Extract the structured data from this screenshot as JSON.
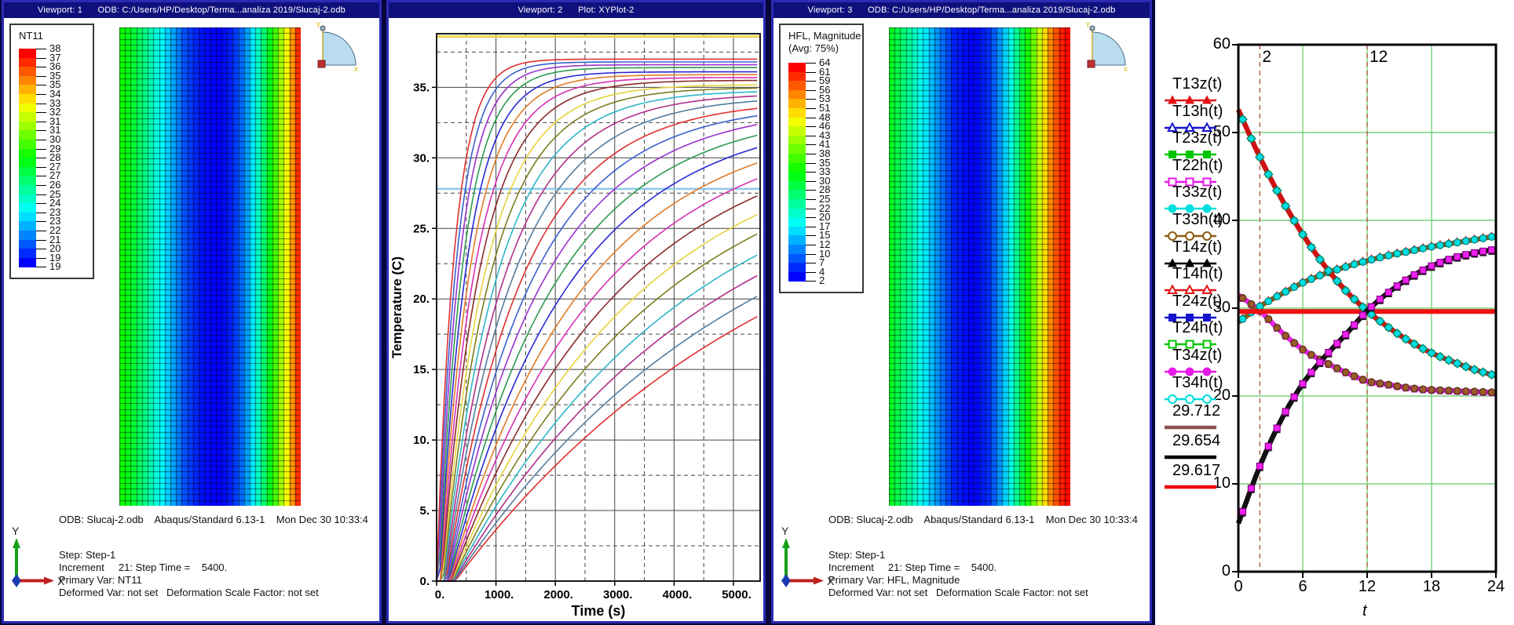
{
  "app": {
    "background": "#07073a",
    "viewport_border": "#2b2bb4",
    "titlebar_bg": "#10107c",
    "titlebar_fg": "#ffffff"
  },
  "viewport1": {
    "title": "Viewport: 1      ODB: C:/Users/HP/Desktop/Terma...analiza 2019/Slucaj-2.odb",
    "odb_line": "ODB: Slucaj-2.odb    Abaqus/Standard 6.13-1    Mon Dec 30 10:33:4",
    "state_lines": [
      "Step: Step-1",
      "Increment     21: Step Time =    5400.",
      "Primary Var: NT11",
      "Deformed Var: not set   Deformation Scale Factor: not set"
    ],
    "triad": {
      "x_label": "X",
      "y_label": "Y"
    }
  },
  "viewport2": {
    "title": "Viewport: 2      Plot: XYPlot-2"
  },
  "viewport3": {
    "title": "Viewport: 3      ODB: C:/Users/HP/Desktop/Terma...analiza 2019/Slucaj-2.odb",
    "odb_line": "ODB: Slucaj-2.odb    Abaqus/Standard 6.13-1    Mon Dec 30 10:33:4",
    "state_lines": [
      "Step: Step-1",
      "Increment     21: Step Time =    5400.",
      "Primary Var: HFL, Magnitude",
      "Deformed Var: not set   Deformation Scale Factor: not set"
    ],
    "triad": {
      "x_label": "X",
      "y_label": "Y"
    }
  },
  "chart_data": [
    {
      "id": "viewport1-contour",
      "type": "heatmap",
      "variable": "NT11",
      "colormap": "rainbow blue(min) to red(max)",
      "value_range": [
        19,
        38
      ],
      "legend": {
        "title_lines": [
          "NT11"
        ],
        "bands": 24,
        "tick_values": [
          38,
          37,
          36,
          35,
          35,
          34,
          33,
          32,
          31,
          31,
          30,
          29,
          28,
          27,
          27,
          26,
          25,
          24,
          23,
          23,
          22,
          21,
          20,
          19,
          19
        ]
      },
      "mesh": {
        "cols": 32,
        "rows": 84
      },
      "profile_x_value": [
        [
          0,
          29.0
        ],
        [
          0.08,
          27.5
        ],
        [
          0.18,
          25.0
        ],
        [
          0.28,
          22.5
        ],
        [
          0.36,
          20.5
        ],
        [
          0.46,
          19.2
        ],
        [
          0.56,
          19.0
        ],
        [
          0.63,
          19.8
        ],
        [
          0.69,
          21.5
        ],
        [
          0.75,
          24.0
        ],
        [
          0.81,
          27.0
        ],
        [
          0.86,
          29.8
        ],
        [
          0.9,
          32.0
        ],
        [
          0.94,
          34.2
        ],
        [
          0.97,
          36.3
        ],
        [
          1,
          38.0
        ]
      ]
    },
    {
      "id": "viewport2-xyplot",
      "type": "line",
      "xlabel": "Time (s)",
      "ylabel": "Temperature (C)",
      "xlim": [
        0,
        5450
      ],
      "ylim": [
        0,
        38.8
      ],
      "x_ticks": [
        0,
        1000,
        2000,
        3000,
        4000,
        5000
      ],
      "x_tick_labels": [
        "0.",
        "1000.",
        "2000.",
        "3000.",
        "4000.",
        "5000."
      ],
      "y_ticks": [
        0,
        5,
        10,
        15,
        20,
        25,
        30,
        35
      ],
      "y_tick_labels": [
        "0.",
        "5.",
        "10.",
        "15.",
        "20.",
        "25.",
        "30.",
        "35."
      ],
      "grid": {
        "major_x": 1000,
        "minor_x": 500,
        "major_y": 5,
        "minor_y": 2.5,
        "minor_style": "dashed"
      },
      "const_lines": [
        {
          "value": 38.6,
          "color": "#e9d44f",
          "width": 3
        },
        {
          "value": 27.8,
          "color": "#8fc8e8",
          "width": 2.5
        }
      ],
      "curve_model": "T(t) = amp*(1-exp(-(t-delay)/tau)) for t>=delay, else 0",
      "palette": [
        "#e03030",
        "#3a5fcd",
        "#9a32cd",
        "#2e9b4e",
        "#2929d6",
        "#e07b28",
        "#d631b4",
        "#8b2a2a",
        "#e6d33f",
        "#7d7d1f",
        "#2eb6c9",
        "#b0308a",
        "#557d9e"
      ],
      "curves": [
        {
          "amp": 37.0,
          "tau": 300,
          "delay": 0
        },
        {
          "amp": 36.8,
          "tau": 335,
          "delay": 12
        },
        {
          "amp": 36.6,
          "tau": 375,
          "delay": 24
        },
        {
          "amp": 36.4,
          "tau": 420,
          "delay": 36
        },
        {
          "amp": 36.1,
          "tau": 470,
          "delay": 48
        },
        {
          "amp": 35.9,
          "tau": 525,
          "delay": 60
        },
        {
          "amp": 35.7,
          "tau": 590,
          "delay": 72
        },
        {
          "amp": 35.5,
          "tau": 660,
          "delay": 84
        },
        {
          "amp": 35.2,
          "tau": 740,
          "delay": 96
        },
        {
          "amp": 35.0,
          "tau": 825,
          "delay": 108
        },
        {
          "amp": 34.8,
          "tau": 925,
          "delay": 120
        },
        {
          "amp": 34.6,
          "tau": 1035,
          "delay": 132
        },
        {
          "amp": 34.4,
          "tau": 1160,
          "delay": 144
        },
        {
          "amp": 34.1,
          "tau": 1295,
          "delay": 156
        },
        {
          "amp": 33.9,
          "tau": 1450,
          "delay": 168
        },
        {
          "amp": 33.7,
          "tau": 1620,
          "delay": 180
        },
        {
          "amp": 33.5,
          "tau": 1815,
          "delay": 192
        },
        {
          "amp": 33.3,
          "tau": 2030,
          "delay": 204
        },
        {
          "amp": 33.0,
          "tau": 2270,
          "delay": 216
        },
        {
          "amp": 32.8,
          "tau": 2540,
          "delay": 228
        },
        {
          "amp": 32.6,
          "tau": 2840,
          "delay": 240
        },
        {
          "amp": 32.4,
          "tau": 3180,
          "delay": 252
        },
        {
          "amp": 32.2,
          "tau": 3555,
          "delay": 264
        },
        {
          "amp": 31.9,
          "tau": 3975,
          "delay": 276
        },
        {
          "amp": 31.7,
          "tau": 4450,
          "delay": 288
        },
        {
          "amp": 31.5,
          "tau": 4980,
          "delay": 300
        },
        {
          "amp": 31.3,
          "tau": 5570,
          "delay": 312
        }
      ]
    },
    {
      "id": "viewport3-contour",
      "type": "heatmap",
      "variable": "HFL, Magnitude",
      "colormap": "rainbow blue(min) to red(max)",
      "value_range": [
        2,
        64
      ],
      "legend": {
        "title_lines": [
          "HFL, Magnitude",
          "(Avg: 75%)"
        ],
        "bands": 24,
        "tick_values": [
          64,
          61,
          59,
          56,
          53,
          51,
          48,
          46,
          43,
          41,
          38,
          35,
          33,
          30,
          28,
          25,
          22,
          20,
          17,
          15,
          12,
          10,
          7,
          4,
          2
        ]
      },
      "mesh": {
        "cols": 32,
        "rows": 84
      },
      "profile_x_value": [
        [
          0,
          32
        ],
        [
          0.08,
          26
        ],
        [
          0.18,
          18
        ],
        [
          0.28,
          10
        ],
        [
          0.36,
          4
        ],
        [
          0.47,
          2
        ],
        [
          0.55,
          5
        ],
        [
          0.62,
          12
        ],
        [
          0.68,
          20
        ],
        [
          0.74,
          30
        ],
        [
          0.8,
          40
        ],
        [
          0.85,
          49
        ],
        [
          0.9,
          57
        ],
        [
          0.95,
          62
        ],
        [
          1,
          64
        ]
      ]
    },
    {
      "id": "panel4-xyplot",
      "type": "line",
      "xlabel": "t",
      "xlim": [
        0,
        24
      ],
      "ylim": [
        0,
        60
      ],
      "x_ticks": [
        0,
        6,
        12,
        18,
        24
      ],
      "y_ticks": [
        0,
        10,
        20,
        30,
        40,
        50,
        60
      ],
      "grid_color": "#5ecb5e",
      "grid_v": [
        6,
        12,
        18
      ],
      "grid_h": [
        10,
        20,
        30,
        40,
        50
      ],
      "dashed_vlines": {
        "color": "#b05a4a",
        "at": [
          2,
          12
        ]
      },
      "top_labels": [
        {
          "x": 2,
          "text": "2"
        },
        {
          "x": 12,
          "text": "12"
        }
      ],
      "marker_dt": 0.8,
      "bundles": [
        {
          "t": [
            0,
            2,
            4,
            6,
            8,
            10,
            12,
            14,
            16,
            18,
            20,
            22,
            24
          ],
          "y": [
            52.6,
            47.2,
            42.5,
            38.4,
            34.9,
            32.0,
            29.7,
            27.8,
            26.2,
            24.9,
            23.9,
            23.0,
            22.3
          ],
          "line_color": "#cc1111",
          "marker": "diamond",
          "marker_fill": "#00dede",
          "marker_edge": "#007878",
          "under_marker": "square",
          "under_fill": "#00c400",
          "under_dy": 0
        },
        {
          "t": [
            0,
            2,
            4,
            6,
            8,
            10,
            12,
            14,
            16,
            18,
            20,
            22,
            24
          ],
          "y": [
            28.4,
            30.2,
            31.6,
            32.9,
            33.9,
            34.7,
            35.4,
            36.0,
            36.5,
            37.0,
            37.4,
            37.8,
            38.2
          ],
          "line_color": "#8b5a14",
          "marker": "circle",
          "marker_fill": "#00dede",
          "marker_edge": "#007878",
          "under_marker": "tri",
          "under_fill": "#dd1111",
          "under_dy": -2
        },
        {
          "t": [
            0,
            2,
            4,
            6,
            8,
            10,
            12,
            14,
            16,
            18,
            20,
            22,
            24
          ],
          "y": [
            5.5,
            12.0,
            17.3,
            21.4,
            24.4,
            27.0,
            29.7,
            31.8,
            33.5,
            34.8,
            35.7,
            36.3,
            36.7
          ],
          "line_color": "#111111",
          "marker": "square",
          "marker_fill": "#ee22ee",
          "marker_edge": "#860086",
          "under_marker": "tri",
          "under_fill": "#111111",
          "under_dy": 2.5
        },
        {
          "t": [
            0,
            2,
            4,
            6,
            8,
            10,
            12,
            14,
            16,
            18,
            20,
            22,
            24
          ],
          "y": [
            31.5,
            29.7,
            27.3,
            25.3,
            23.9,
            22.7,
            21.7,
            21.3,
            20.9,
            20.7,
            20.6,
            20.5,
            20.4
          ],
          "line_color": "#ee22ee",
          "marker": "circle",
          "marker_fill": "#9b5a2b",
          "marker_edge": "#4a2a10",
          "under_marker": "square",
          "under_fill": "#ee22ee",
          "under_dy": 1
        }
      ],
      "hlines": [
        {
          "value": 29.712,
          "color": "#8b5252",
          "width": 4
        },
        {
          "value": 29.654,
          "color": "#111111",
          "width": 4
        },
        {
          "value": 29.617,
          "color": "#ee1111",
          "width": 6
        }
      ],
      "legend": [
        {
          "label": "T13z(t)",
          "color": "#e11414",
          "marker": "tri",
          "fill": true
        },
        {
          "label": "T13h(t)",
          "color": "#1414cc",
          "marker": "tri",
          "fill": false
        },
        {
          "label": "T23z(t)",
          "color": "#00c400",
          "marker": "square",
          "fill": true
        },
        {
          "label": "T22h(t)",
          "color": "#e619e6",
          "marker": "square",
          "fill": false
        },
        {
          "label": "T33z(t)",
          "color": "#00dede",
          "marker": "circle",
          "fill": true
        },
        {
          "label": "T33h(t)",
          "color": "#8b5a14",
          "marker": "circle",
          "fill": false
        },
        {
          "label": "T14z(t)",
          "color": "#000000",
          "marker": "tri",
          "fill": true
        },
        {
          "label": "T14h(t)",
          "color": "#e11414",
          "marker": "tri",
          "fill": false
        },
        {
          "label": "T24z(t)",
          "color": "#1414cc",
          "marker": "square",
          "fill": true
        },
        {
          "label": "T24h(t)",
          "color": "#00c400",
          "marker": "square",
          "fill": false
        },
        {
          "label": "T34z(t)",
          "color": "#e619e6",
          "marker": "circle",
          "fill": true
        },
        {
          "label": "T34h(t)",
          "color": "#00dede",
          "marker": "circle",
          "fill": false
        },
        {
          "label": "29.712",
          "color": "#8b5252",
          "marker": "none",
          "fill": false
        },
        {
          "label": "29.654",
          "color": "#000000",
          "marker": "none",
          "fill": false
        },
        {
          "label": "29.617",
          "color": "#ee0000",
          "marker": "none",
          "fill": false
        }
      ]
    }
  ]
}
